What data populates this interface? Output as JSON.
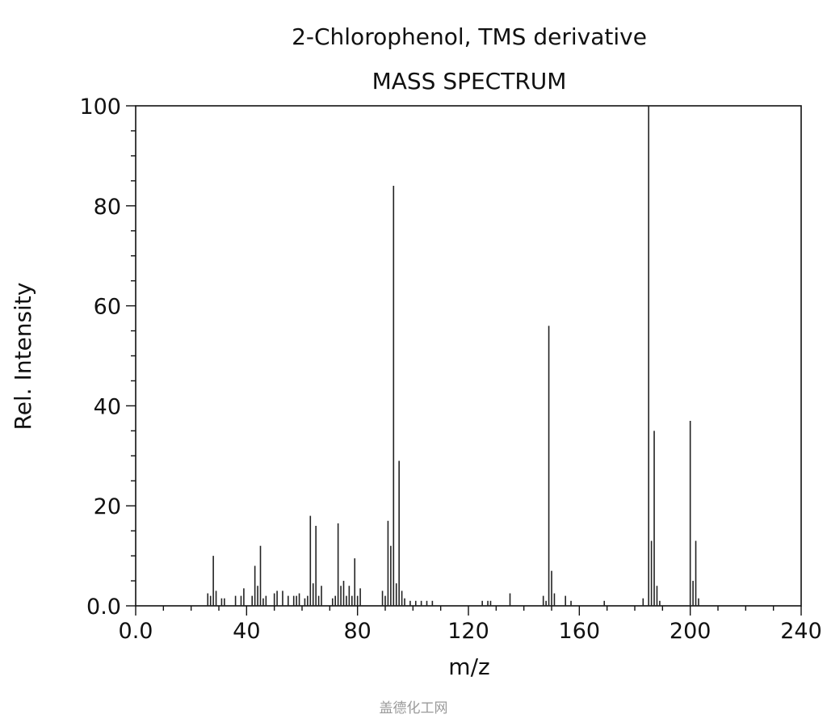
{
  "chart_data": {
    "type": "bar",
    "title": "2-Chlorophenol, TMS derivative",
    "subtitle": "MASS SPECTRUM",
    "xlabel": "m/z",
    "ylabel": "Rel. Intensity",
    "xlim": [
      0,
      240
    ],
    "ylim": [
      0,
      100
    ],
    "xticks": [
      "0.0",
      "40",
      "80",
      "120",
      "160",
      "200",
      "240"
    ],
    "xtick_values": [
      0,
      40,
      80,
      120,
      160,
      200,
      240
    ],
    "yticks": [
      "0.0",
      "20",
      "40",
      "60",
      "80",
      "100"
    ],
    "ytick_values": [
      0,
      20,
      40,
      60,
      80,
      100
    ],
    "grid": false,
    "peaks": [
      {
        "x": 26,
        "y": 2.5
      },
      {
        "x": 27,
        "y": 2
      },
      {
        "x": 28,
        "y": 10
      },
      {
        "x": 29,
        "y": 3
      },
      {
        "x": 31,
        "y": 1.5
      },
      {
        "x": 32,
        "y": 1.5
      },
      {
        "x": 36,
        "y": 2
      },
      {
        "x": 38,
        "y": 2
      },
      {
        "x": 39,
        "y": 3.5
      },
      {
        "x": 42,
        "y": 2
      },
      {
        "x": 43,
        "y": 8
      },
      {
        "x": 44,
        "y": 4
      },
      {
        "x": 45,
        "y": 12
      },
      {
        "x": 46,
        "y": 1.5
      },
      {
        "x": 47,
        "y": 2
      },
      {
        "x": 50,
        "y": 2.5
      },
      {
        "x": 51,
        "y": 3
      },
      {
        "x": 53,
        "y": 3
      },
      {
        "x": 55,
        "y": 2
      },
      {
        "x": 57,
        "y": 2
      },
      {
        "x": 58,
        "y": 2
      },
      {
        "x": 59,
        "y": 2.5
      },
      {
        "x": 61,
        "y": 1.5
      },
      {
        "x": 62,
        "y": 2
      },
      {
        "x": 63,
        "y": 18
      },
      {
        "x": 64,
        "y": 4.5
      },
      {
        "x": 65,
        "y": 16
      },
      {
        "x": 66,
        "y": 2
      },
      {
        "x": 67,
        "y": 4
      },
      {
        "x": 71,
        "y": 1.5
      },
      {
        "x": 72,
        "y": 2
      },
      {
        "x": 73,
        "y": 16.5
      },
      {
        "x": 74,
        "y": 4
      },
      {
        "x": 75,
        "y": 5
      },
      {
        "x": 76,
        "y": 2
      },
      {
        "x": 77,
        "y": 4
      },
      {
        "x": 78,
        "y": 2
      },
      {
        "x": 79,
        "y": 9.5
      },
      {
        "x": 80,
        "y": 2
      },
      {
        "x": 81,
        "y": 3.5
      },
      {
        "x": 89,
        "y": 3
      },
      {
        "x": 90,
        "y": 2
      },
      {
        "x": 91,
        "y": 17
      },
      {
        "x": 92,
        "y": 12
      },
      {
        "x": 93,
        "y": 84
      },
      {
        "x": 94,
        "y": 4.5
      },
      {
        "x": 95,
        "y": 29
      },
      {
        "x": 96,
        "y": 3
      },
      {
        "x": 97,
        "y": 1.5
      },
      {
        "x": 99,
        "y": 1
      },
      {
        "x": 101,
        "y": 1
      },
      {
        "x": 103,
        "y": 1
      },
      {
        "x": 105,
        "y": 1
      },
      {
        "x": 107,
        "y": 1
      },
      {
        "x": 125,
        "y": 1
      },
      {
        "x": 127,
        "y": 1
      },
      {
        "x": 128,
        "y": 1
      },
      {
        "x": 135,
        "y": 2.5
      },
      {
        "x": 147,
        "y": 2
      },
      {
        "x": 148,
        "y": 1
      },
      {
        "x": 149,
        "y": 56
      },
      {
        "x": 150,
        "y": 7
      },
      {
        "x": 151,
        "y": 2.5
      },
      {
        "x": 155,
        "y": 2
      },
      {
        "x": 157,
        "y": 1
      },
      {
        "x": 169,
        "y": 1
      },
      {
        "x": 183,
        "y": 1.5
      },
      {
        "x": 185,
        "y": 100
      },
      {
        "x": 186,
        "y": 13
      },
      {
        "x": 187,
        "y": 35
      },
      {
        "x": 188,
        "y": 4
      },
      {
        "x": 189,
        "y": 1
      },
      {
        "x": 200,
        "y": 37
      },
      {
        "x": 201,
        "y": 5
      },
      {
        "x": 202,
        "y": 13
      },
      {
        "x": 203,
        "y": 1.5
      }
    ]
  },
  "watermark": "盖德化工网"
}
